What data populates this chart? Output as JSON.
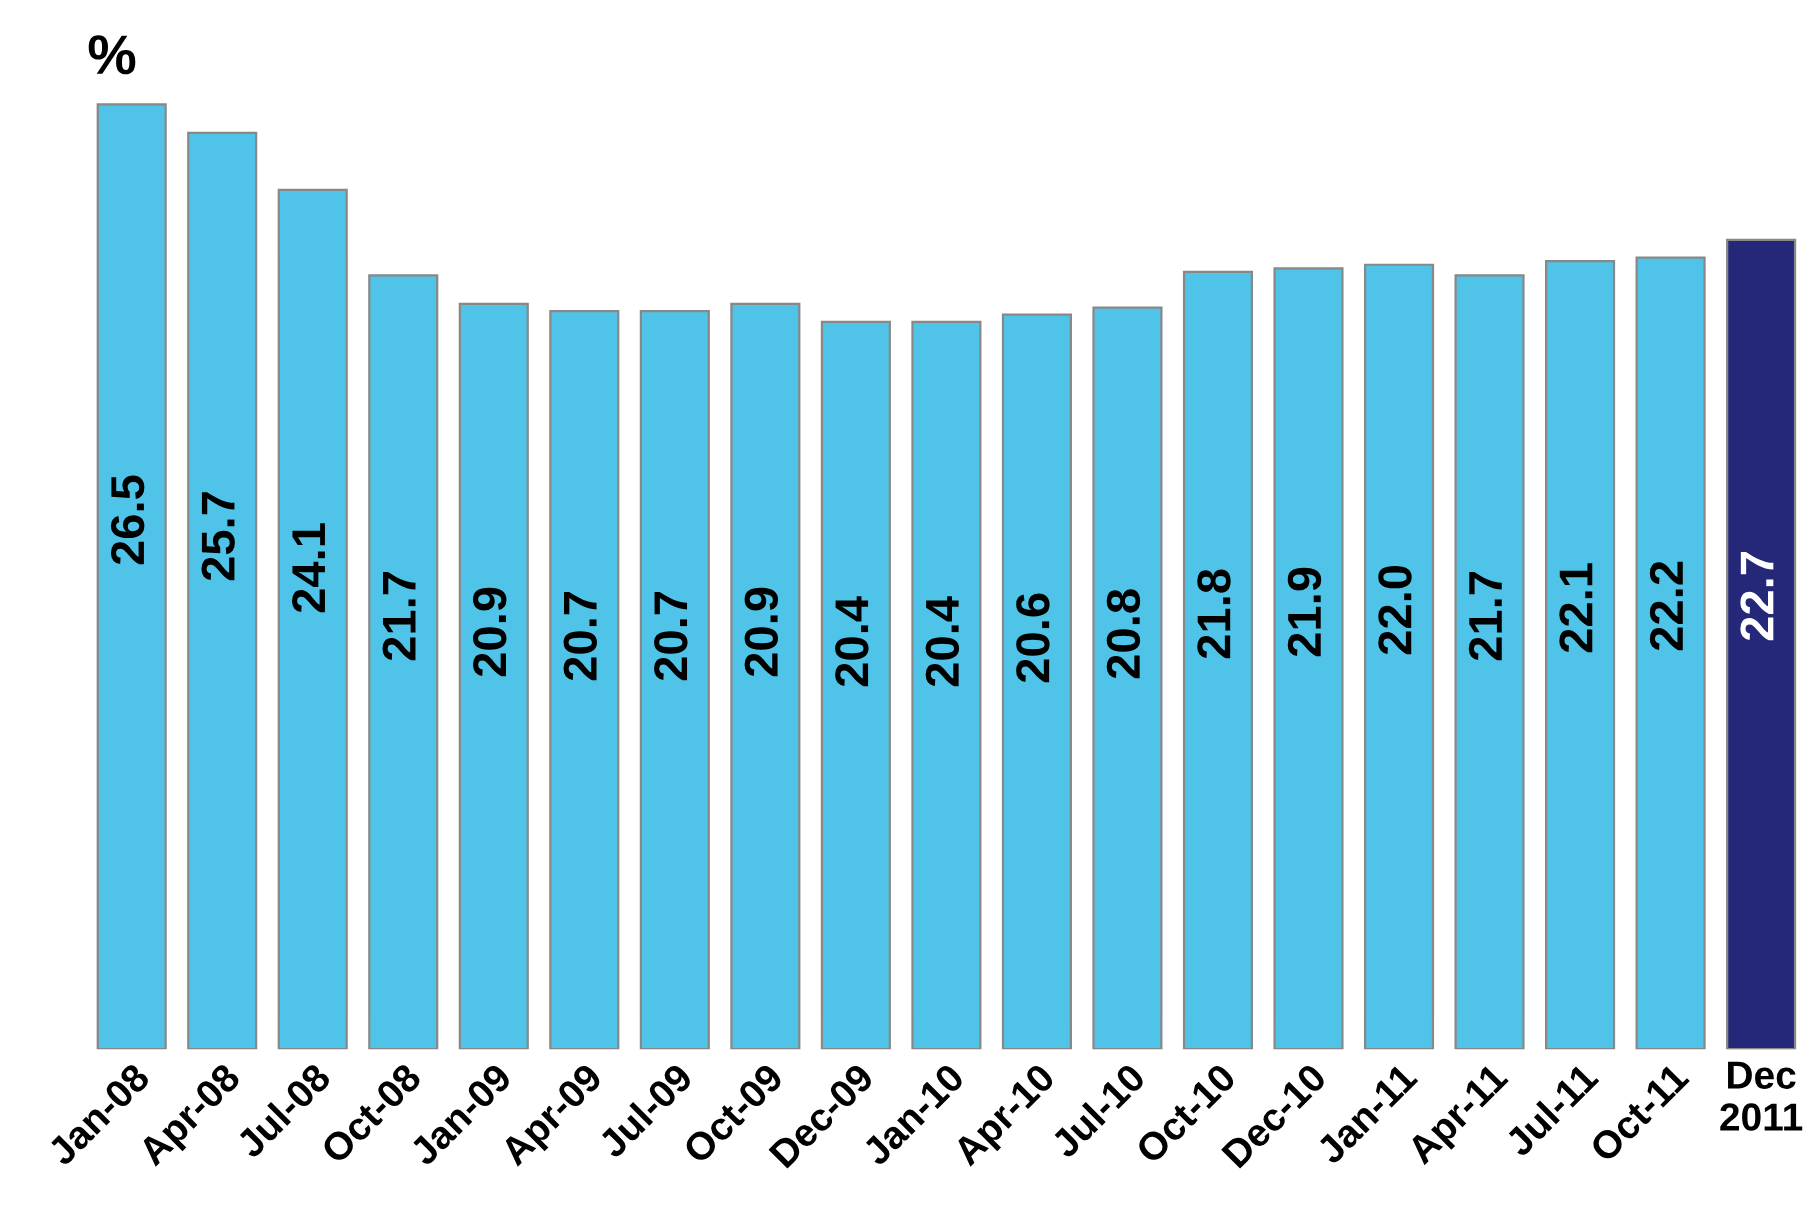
{
  "chart_data": {
    "type": "bar",
    "ylabel": "%",
    "categories": [
      "Jan-08",
      "Apr-08",
      "Jul-08",
      "Oct-08",
      "Jan-09",
      "Apr-09",
      "Jul-09",
      "Oct-09",
      "Dec-09",
      "Jan-10",
      "Apr-10",
      "Jul-10",
      "Oct-10",
      "Dec-10",
      "Jan-11",
      "Apr-11",
      "Jul-11",
      "Oct-11",
      "Dec\n2011"
    ],
    "values": [
      26.5,
      25.7,
      24.1,
      21.7,
      20.9,
      20.7,
      20.7,
      20.9,
      20.4,
      20.4,
      20.6,
      20.8,
      21.8,
      21.9,
      22.0,
      21.7,
      22.1,
      22.2,
      22.7
    ],
    "colors": [
      "#4fc4e8",
      "#4fc4e8",
      "#4fc4e8",
      "#4fc4e8",
      "#4fc4e8",
      "#4fc4e8",
      "#4fc4e8",
      "#4fc4e8",
      "#4fc4e8",
      "#4fc4e8",
      "#4fc4e8",
      "#4fc4e8",
      "#4fc4e8",
      "#4fc4e8",
      "#4fc4e8",
      "#4fc4e8",
      "#4fc4e8",
      "#4fc4e8",
      "#252878"
    ],
    "value_labels": [
      "26.5",
      "25.7",
      "24.1",
      "21.7",
      "20.9",
      "20.7",
      "20.7",
      "20.9",
      "20.4",
      "20.4",
      "20.6",
      "20.8",
      "21.8",
      "21.9",
      "22.0",
      "21.7",
      "22.1",
      "22.2",
      "22.7"
    ],
    "grid": false,
    "legend": false
  }
}
